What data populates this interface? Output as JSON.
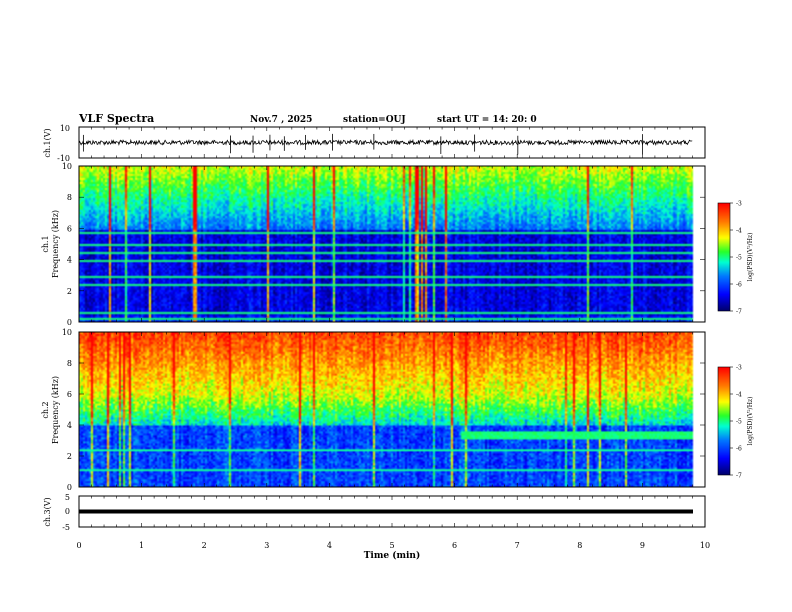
{
  "header": {
    "title": "VLF Spectra",
    "date": "Nov.7 , 2025",
    "station": "station=OUJ",
    "start_ut": "start UT = 14: 20: 0"
  },
  "chart_data": [
    {
      "type": "line",
      "id": "ch1_waveform",
      "ylabel": "ch.1(V)",
      "ylim": [
        -10,
        10
      ],
      "yticks": [
        "10",
        "-10"
      ],
      "baseline": 0,
      "spikes_min": [
        0.07,
        2.42,
        2.78,
        3.05,
        3.28,
        3.62,
        4.05,
        4.71,
        5.78,
        6.32,
        7.01,
        9.0
      ]
    },
    {
      "type": "heatmap",
      "id": "ch1_spectrogram",
      "ylabel": "ch.1 Frequency (kHz)",
      "ylim": [
        0,
        10
      ],
      "yticks": [
        "0",
        "2",
        "4",
        "6",
        "8",
        "10"
      ],
      "xlim_min": [
        0,
        10
      ],
      "data_end_min": 9.8,
      "colorbar_label": "log(PSD)(V²/Hz)",
      "colorbar_range": [
        -7,
        -3
      ],
      "colorbar_ticks": [
        "-3",
        "-4",
        "-5",
        "-6",
        "-7"
      ],
      "horizontal_lines_khz": [
        0.3,
        0.6,
        1.1,
        1.6,
        2.0,
        2.4,
        2.9,
        3.4,
        4.0,
        4.5,
        5.0,
        5.8
      ]
    },
    {
      "type": "heatmap",
      "id": "ch2_spectrogram",
      "ylabel": "ch.2 Frequency (kHz)",
      "ylim": [
        0,
        10
      ],
      "yticks": [
        "0",
        "2",
        "4",
        "6",
        "8",
        "10"
      ],
      "xlim_min": [
        0,
        10
      ],
      "data_end_min": 9.8,
      "colorbar_label": "log(PSD)(V²/Hz)",
      "colorbar_range": [
        -7,
        -3
      ],
      "colorbar_ticks": [
        "-3",
        "-4",
        "-5",
        "-6",
        "-7"
      ],
      "band_khz": [
        3.2,
        3.7
      ],
      "band_start_min": 6.1
    },
    {
      "type": "line",
      "id": "ch3_waveform",
      "ylabel": "ch.3(V)",
      "ylim": [
        -5,
        5
      ],
      "yticks": [
        "5",
        "0",
        "-5"
      ],
      "baseline": 0
    }
  ],
  "xaxis": {
    "label": "Time (min)",
    "range": [
      0,
      10
    ],
    "ticks": [
      "0",
      "1",
      "2",
      "3",
      "4",
      "5",
      "6",
      "7",
      "8",
      "9",
      "10"
    ]
  },
  "colors": {
    "colormap": [
      "#00007a",
      "#0000ff",
      "#0078ff",
      "#00ffd0",
      "#30ff30",
      "#ffff00",
      "#ff8000",
      "#ff0000",
      "#e0e0ff"
    ],
    "axis": "#000000"
  }
}
